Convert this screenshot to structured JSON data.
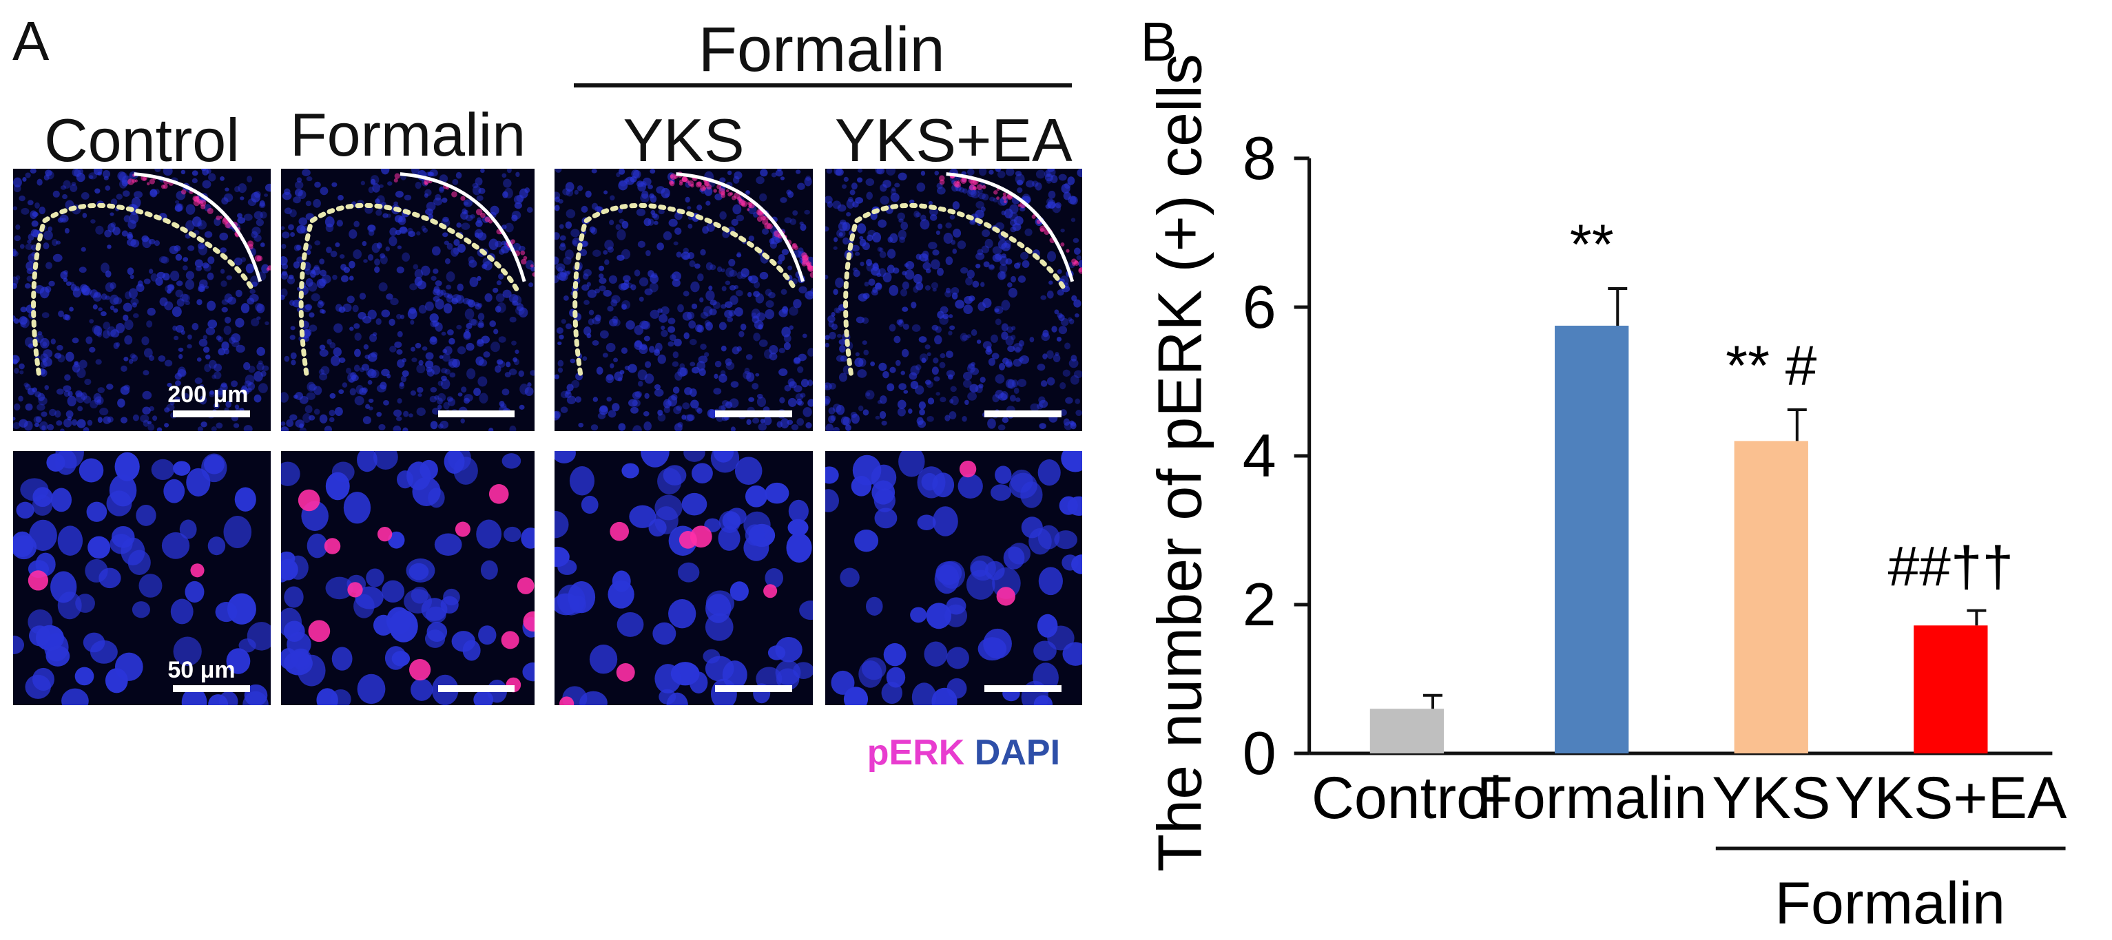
{
  "panel_a": {
    "letter": "A",
    "group_label": "Formalin",
    "columns": [
      "Control",
      "Formalin",
      "YKS",
      "YKS+EA"
    ],
    "scale_top": "200 μm",
    "scale_bottom": "50 μm",
    "stain_perk": "pERK",
    "stain_dapi": "DAPI",
    "colors": {
      "background": "#03041a",
      "dapi": "#2a35d8",
      "perk": "#ff2fa6"
    }
  },
  "panel_b": {
    "letter": "B"
  },
  "chart_data": {
    "type": "bar",
    "categories": [
      "Control",
      "Formalin",
      "YKS",
      "YKS+EA"
    ],
    "values": [
      0.6,
      5.75,
      4.2,
      1.72
    ],
    "errors": [
      0.18,
      0.5,
      0.42,
      0.2
    ],
    "colors": [
      "#bfbfbf",
      "#4f81bd",
      "#fac090",
      "#ff0000"
    ],
    "annotations": [
      "",
      "**",
      "** #",
      "##††"
    ],
    "ylabel": "The number of pERK (+) cells",
    "ylim": [
      0,
      8
    ],
    "yticks": [
      0,
      2,
      4,
      6,
      8
    ],
    "group_label": "Formalin",
    "grid": false,
    "legend": "none"
  }
}
